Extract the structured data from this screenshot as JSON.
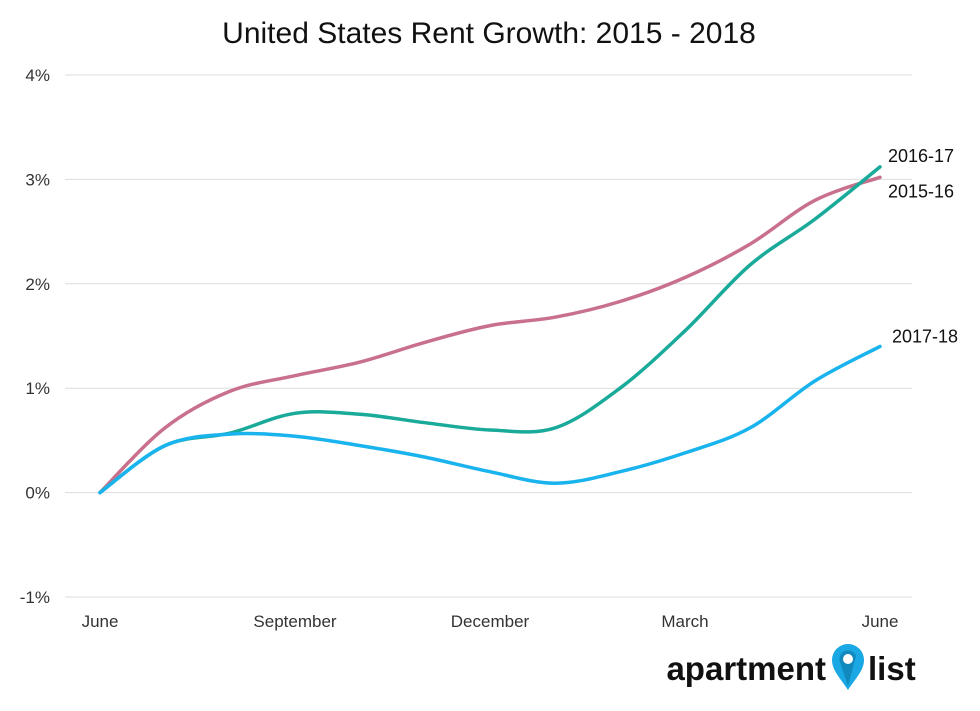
{
  "chart_data": {
    "type": "line",
    "title": "United States Rent Growth: 2015 - 2018",
    "xlabel": "",
    "ylabel": "",
    "x_ticks": [
      "June",
      "September",
      "December",
      "March",
      "June"
    ],
    "y_ticks": [
      "-1%",
      "0%",
      "1%",
      "2%",
      "3%",
      "4%"
    ],
    "ylim": [
      -1,
      4
    ],
    "grid": true,
    "x": [
      0,
      1,
      2,
      3,
      4,
      5,
      6,
      7,
      8,
      9,
      10,
      11,
      12
    ],
    "series": [
      {
        "name": "2015-16",
        "color": "#c8708c",
        "values": [
          0,
          0.62,
          0.97,
          1.12,
          1.25,
          1.44,
          1.6,
          1.68,
          1.83,
          2.06,
          2.38,
          2.8,
          3.02
        ]
      },
      {
        "name": "2016-17",
        "color": "#1aaa9a",
        "values": [
          0,
          0.45,
          0.57,
          0.76,
          0.75,
          0.67,
          0.6,
          0.62,
          1.0,
          1.55,
          2.18,
          2.62,
          3.12
        ]
      },
      {
        "name": "2017-18",
        "color": "#19b3ee",
        "values": [
          0,
          0.45,
          0.56,
          0.54,
          0.45,
          0.34,
          0.2,
          0.09,
          0.2,
          0.38,
          0.62,
          1.07,
          1.4
        ]
      }
    ]
  },
  "logo": {
    "text_left": "apartment",
    "text_right": "list",
    "pin_color": "#1aa8e4"
  }
}
